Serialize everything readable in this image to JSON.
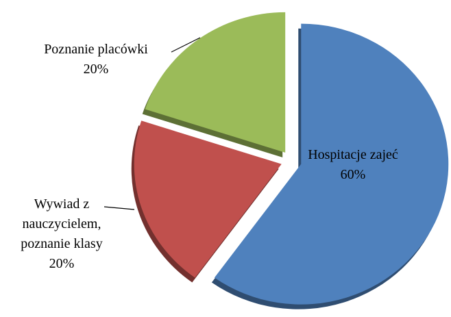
{
  "chart_data": {
    "type": "pie",
    "categories": [
      "Hospitacje zajeć",
      "Wywiad z nauczycielem, poznanie klasy",
      "Poznanie placówki"
    ],
    "values": [
      60,
      20,
      20
    ],
    "value_labels": [
      "60%",
      "20%",
      "20%"
    ],
    "colors": [
      "#4f81bd",
      "#c0504d",
      "#9bbb59"
    ],
    "exploded": true
  }
}
